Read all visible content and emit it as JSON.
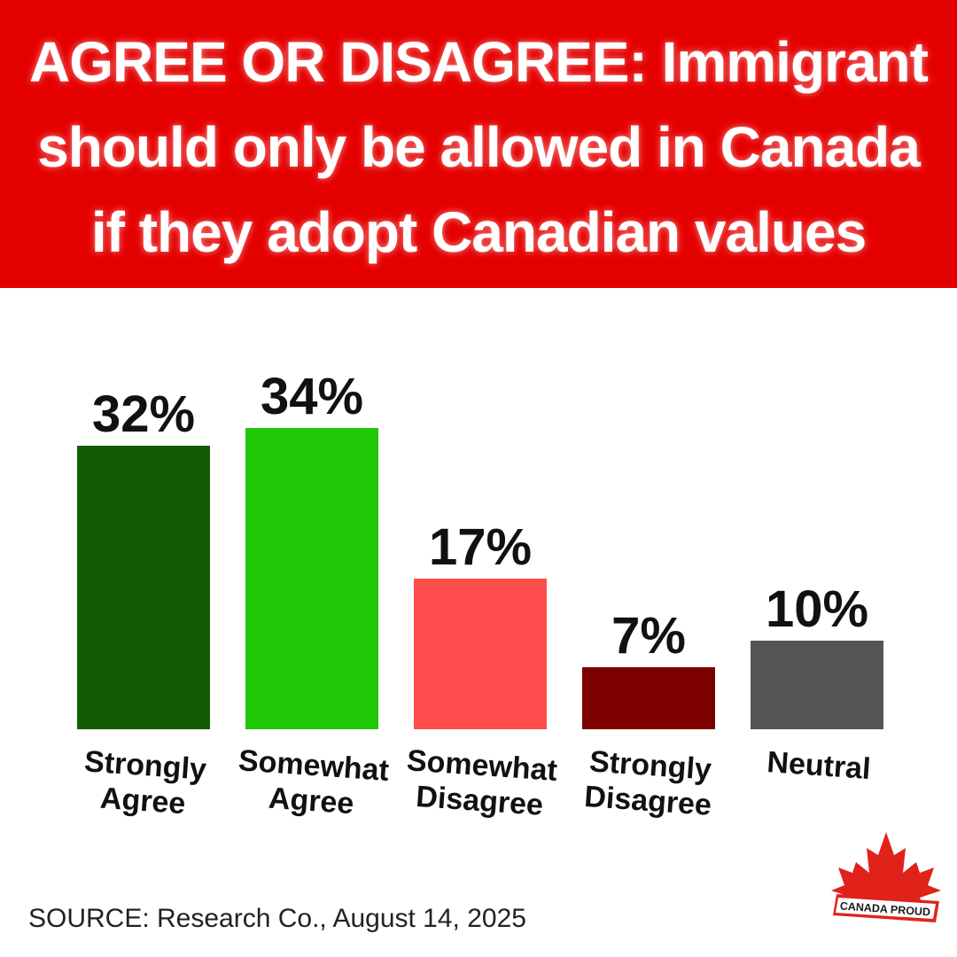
{
  "header": {
    "title_lines": [
      "AGREE OR DISAGREE: Immigrant",
      "should only be allowed in Canada",
      "if they adopt Canadian values"
    ]
  },
  "chart_data": {
    "type": "bar",
    "categories": [
      [
        "Strongly",
        "Agree"
      ],
      [
        "Somewhat",
        "Agree"
      ],
      [
        "Somewhat",
        "Disagree"
      ],
      [
        "Strongly",
        "Disagree"
      ],
      [
        "Neutral"
      ]
    ],
    "values": [
      32,
      34,
      17,
      7,
      10
    ],
    "value_labels": [
      "32%",
      "34%",
      "17%",
      "7%",
      "10%"
    ],
    "colors": [
      "#135c03",
      "#1fc804",
      "#ff4d4d",
      "#7d0000",
      "#555555"
    ],
    "ylim": [
      0,
      34
    ]
  },
  "footer": {
    "source": "SOURCE: Research Co., August 14, 2025"
  },
  "logo": {
    "text": "CANADA PROUD",
    "icon": "maple-leaf-icon",
    "color": "#e0221b"
  }
}
